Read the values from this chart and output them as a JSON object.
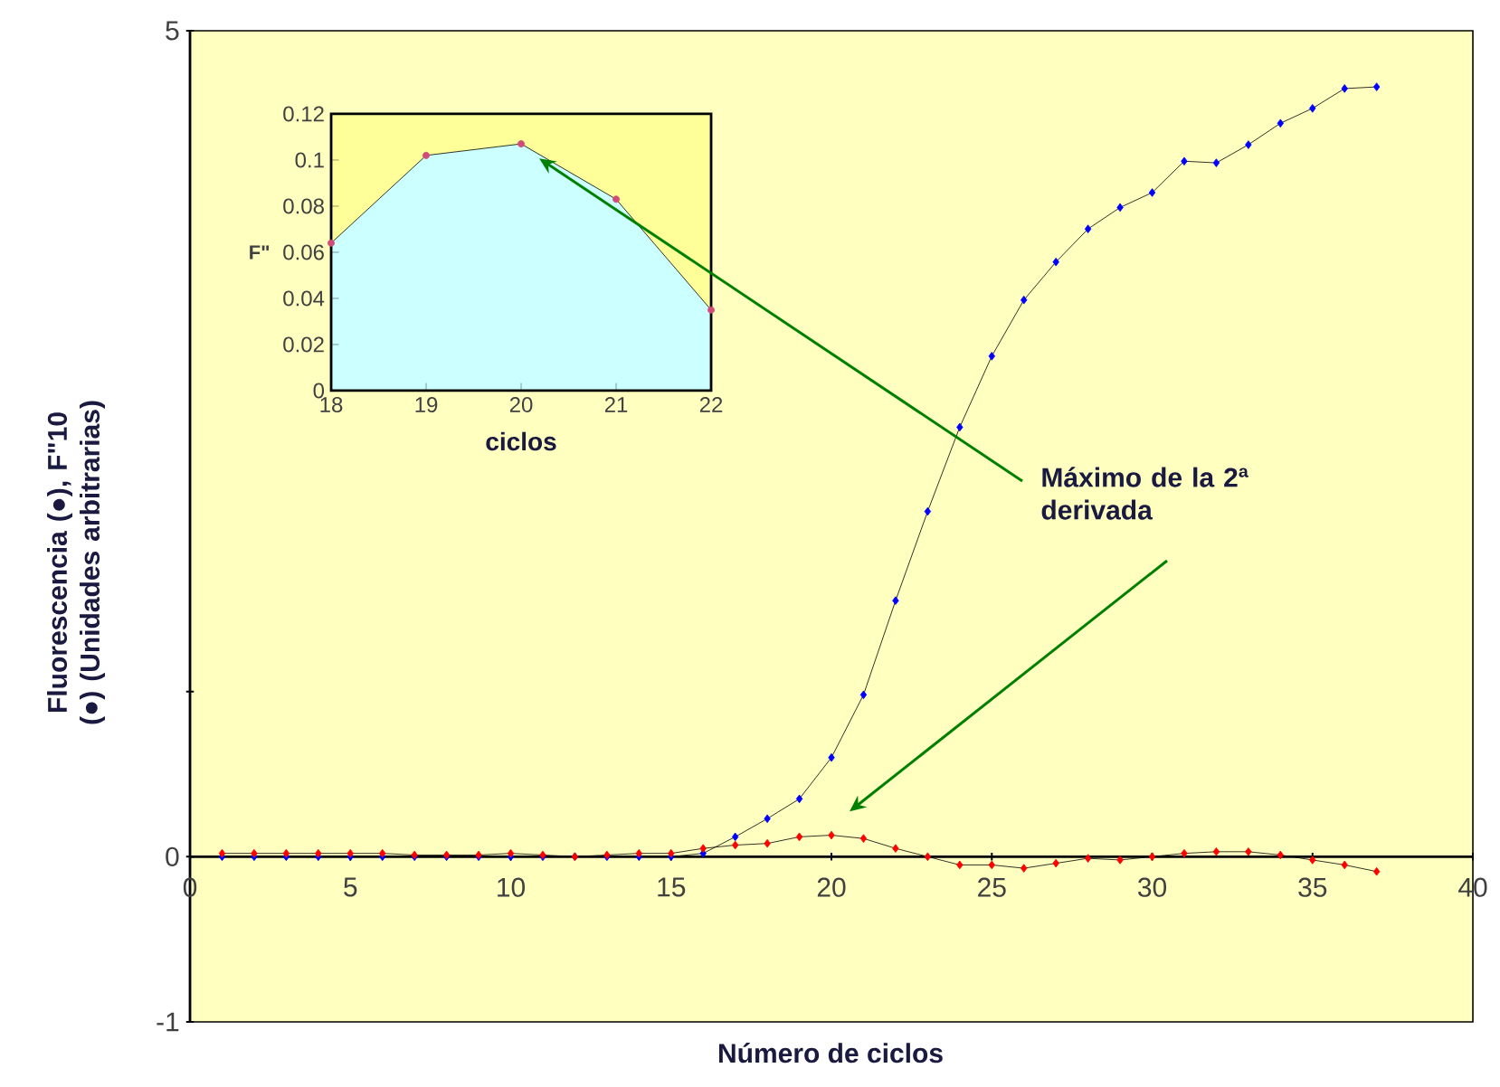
{
  "chart_data": [
    {
      "type": "line",
      "xlabel": "Número de ciclos",
      "ylabel": "Fluorescencia (●), F\"10 (●) (Unidades arbitrarias)",
      "x": [
        1,
        2,
        3,
        4,
        5,
        6,
        7,
        8,
        9,
        10,
        11,
        12,
        13,
        14,
        15,
        16,
        17,
        18,
        19,
        20,
        21,
        22,
        23,
        24,
        25,
        26,
        27,
        28,
        29,
        30,
        31,
        32,
        33,
        34,
        35,
        36,
        37
      ],
      "series": [
        {
          "color": "#0000ff",
          "values": [
            0,
            0,
            0,
            0,
            0,
            0,
            0,
            0,
            0,
            0,
            0,
            0,
            0,
            0,
            0,
            0.02,
            0.12,
            0.23,
            0.35,
            0.6,
            0.98,
            1.55,
            2.09,
            2.6,
            3.03,
            3.37,
            3.6,
            3.8,
            3.93,
            4.02,
            4.21,
            4.2,
            4.31,
            4.44,
            4.53,
            4.65,
            4.66
          ]
        },
        {
          "color": "#ff0000",
          "values": [
            0.02,
            0.02,
            0.02,
            0.02,
            0.02,
            0.02,
            0.01,
            0.01,
            0.01,
            0.02,
            0.01,
            0,
            0.01,
            0.02,
            0.02,
            0.05,
            0.07,
            0.08,
            0.12,
            0.13,
            0.11,
            0.05,
            0,
            -0.05,
            -0.05,
            -0.07,
            -0.04,
            -0.01,
            -0.02,
            0,
            0.02,
            0.03,
            0.03,
            0.01,
            -0.02,
            -0.05,
            -0.09
          ]
        }
      ],
      "xlim": [
        0,
        40
      ],
      "xticks": [
        0,
        5,
        10,
        15,
        20,
        25,
        30,
        35,
        40
      ],
      "ylim": [
        -1,
        5
      ],
      "yticks": [
        -1,
        0,
        {
          "value": 1,
          "label": null
        },
        5
      ],
      "marker": "diamond",
      "annotations": [
        "Máximo de la 2ª derivada"
      ]
    },
    {
      "type": "area",
      "xlabel": "ciclos",
      "ylabel": "F\"",
      "x": [
        18,
        19,
        20,
        21,
        22
      ],
      "series": [
        {
          "color": "#ccffff",
          "values": [
            0.064,
            0.102,
            0.107,
            0.083,
            0.035
          ]
        }
      ],
      "xlim": [
        18,
        22
      ],
      "xticks": [
        18,
        19,
        20,
        21,
        22
      ],
      "ylim": [
        0,
        0.12
      ],
      "yticks": [
        0,
        0.02,
        0.04,
        0.06,
        0.08,
        0.1,
        0.12
      ],
      "bands": [
        {
          "axis": "x",
          "from": 18,
          "to": 22,
          "color": "#ffff99"
        }
      ],
      "marker": "circle"
    }
  ]
}
